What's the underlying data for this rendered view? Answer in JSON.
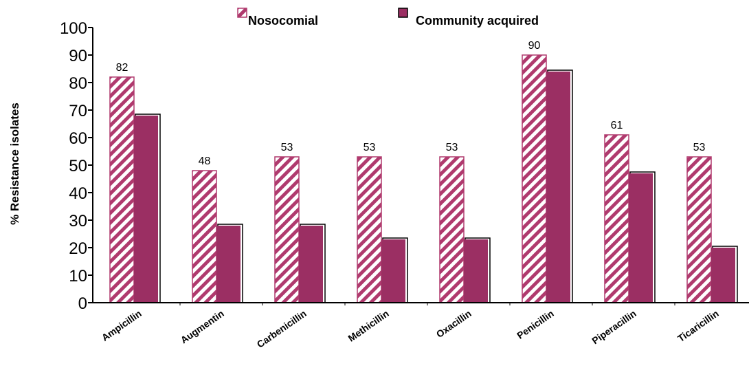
{
  "colors": {
    "nosocomial": "#b03a6e",
    "community": "#9b2f63",
    "axis": "#000000"
  },
  "chart_data": {
    "type": "bar",
    "ylabel": "% Resistance isolates",
    "xlabel": "",
    "ylim": [
      0,
      100
    ],
    "yticks": [
      0,
      10,
      20,
      30,
      40,
      50,
      60,
      70,
      80,
      90,
      100
    ],
    "categories": [
      "Ampicillin",
      "Augmentin",
      "Carbenicillin",
      "Methicillin",
      "Oxacillin",
      "Penicillin",
      "Piperacillin",
      "Ticaricillin"
    ],
    "series": [
      {
        "name": "Nosocomial",
        "values": [
          82,
          48,
          53,
          53,
          53,
          90,
          61,
          53
        ],
        "pattern": "diagonal-hatch"
      },
      {
        "name": "Community acquired",
        "values": [
          68,
          28,
          28,
          23,
          23,
          84,
          47,
          20
        ],
        "pattern": "solid"
      }
    ],
    "data_labels": [
      82,
      48,
      53,
      53,
      53,
      90,
      61,
      53
    ],
    "legend": {
      "placement": "top",
      "entries": [
        "Nosocomial",
        "Community acquired"
      ]
    },
    "grid": false
  }
}
